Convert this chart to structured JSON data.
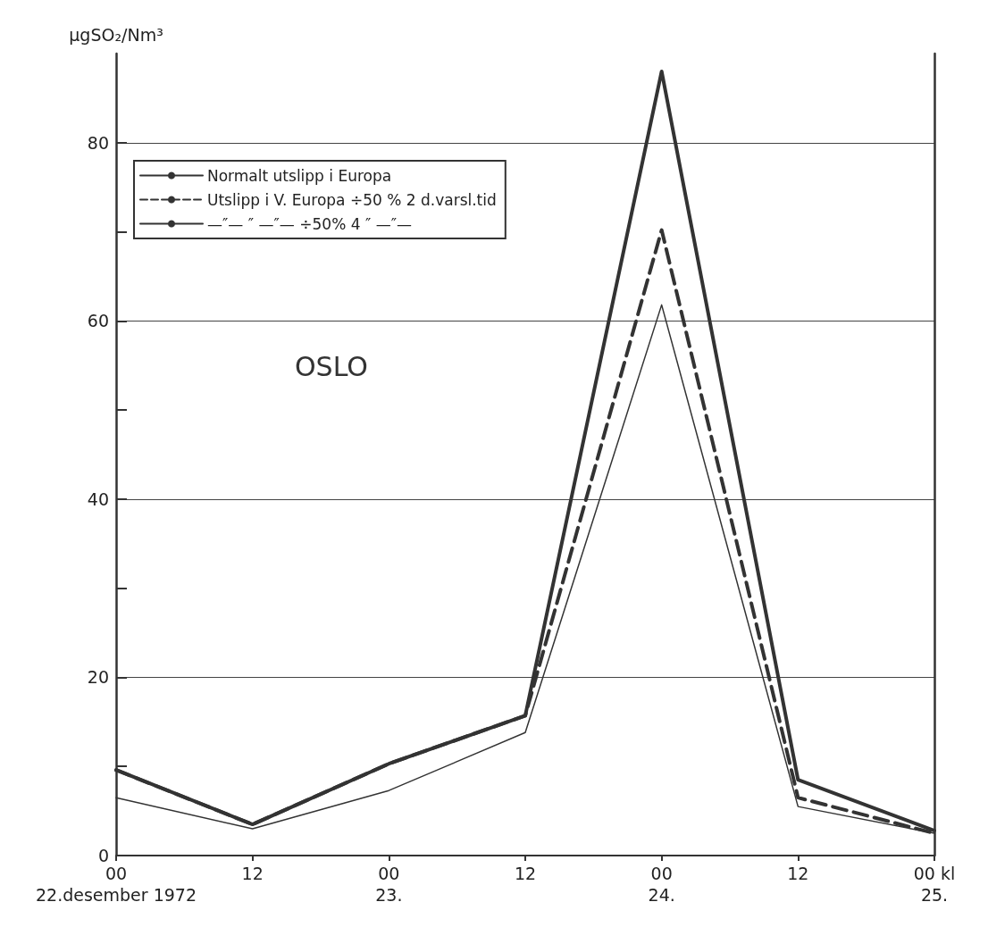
{
  "chart_data": {
    "type": "line",
    "ylabel": "μgSO₂/Nm³",
    "categories": [
      "00\n22.desember 1972",
      "12",
      "00\n23.",
      "12",
      "00\n24.",
      "12",
      "00 kl\n25."
    ],
    "series": [
      {
        "name": "Normalt utslipp i Europa",
        "color": "#333333",
        "line_style": "solid",
        "values": [
          9.6,
          3.5,
          10.3,
          15.7,
          88,
          8.5,
          2.8
        ]
      },
      {
        "name": "Utslipp i V. Europa ÷50 % 2 d.varsl.tid",
        "color": "#333333",
        "line_style": "dashed",
        "values": [
          9.6,
          3.5,
          10.3,
          15.7,
          70.2,
          6.5,
          2.5
        ]
      },
      {
        "name": "—″— ″ —″— ÷50% 4 ″ —″—",
        "color": "#333333",
        "line_style": "solid",
        "values": [
          6.5,
          3,
          7.3,
          13.8,
          61.8,
          5.5,
          2.5
        ]
      }
    ],
    "ylim": [
      0,
      90
    ],
    "yticks": [
      0,
      {
        "value": 10,
        "label": null
      },
      20,
      {
        "value": 30,
        "label": null
      },
      40,
      {
        "value": 50,
        "label": null
      },
      60,
      {
        "value": 70,
        "label": null
      },
      80
    ],
    "annotations": [
      "OSLO"
    ],
    "grid": "y",
    "legend": "top left",
    "marker": "none"
  }
}
